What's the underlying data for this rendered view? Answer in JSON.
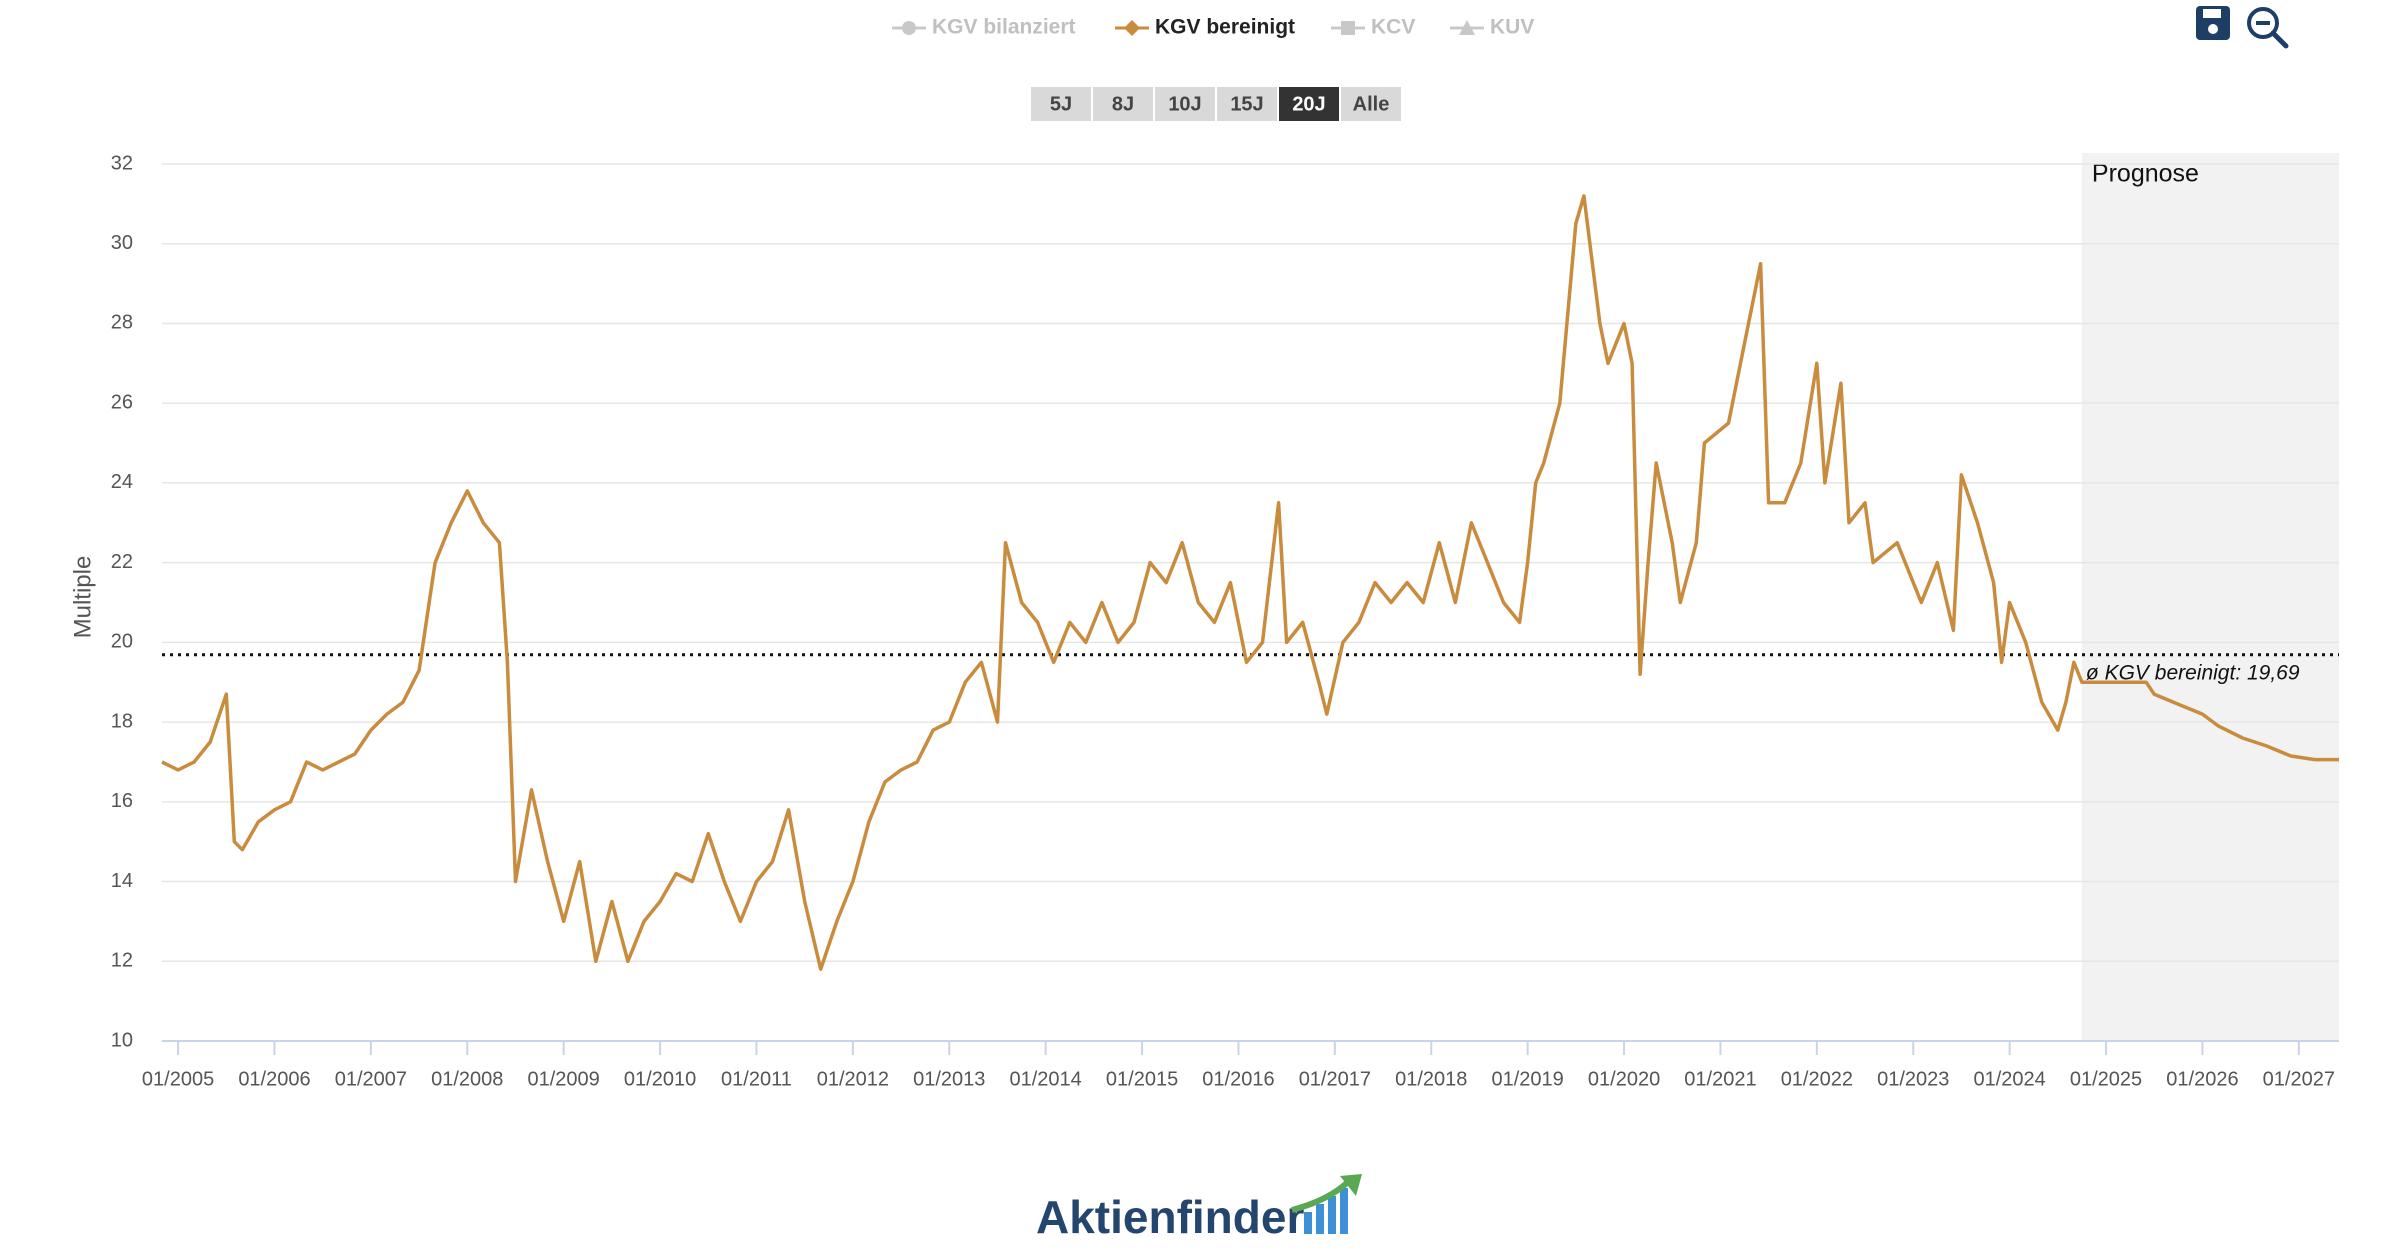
{
  "chart_data": {
    "type": "line",
    "legend": [
      {
        "name": "KGV bilanziert",
        "active": false
      },
      {
        "name": "KGV bereinigt",
        "active": true
      },
      {
        "name": "KCV",
        "active": false
      },
      {
        "name": "KUV",
        "active": false
      }
    ],
    "range_buttons": [
      "5J",
      "8J",
      "10J",
      "15J",
      "20J",
      "Alle"
    ],
    "active_range": 4,
    "y_label": "Multiple",
    "forecast_label": "Prognose",
    "forecast_start": "2024-10",
    "average": {
      "value": 19.69,
      "label": "ø KGV bereinigt: 19,69"
    },
    "logo": "Aktienfinder",
    "grid": true,
    "xlim": [
      "2004-11",
      "2027-06"
    ],
    "ylim": [
      10,
      32
    ],
    "yticks": [
      10,
      12,
      14,
      16,
      18,
      20,
      22,
      24,
      26,
      28,
      30,
      32
    ],
    "xticks": [
      {
        "value": "2005-01",
        "label": "01/2005"
      },
      {
        "value": "2006-01",
        "label": "01/2006"
      },
      {
        "value": "2007-01",
        "label": "01/2007"
      },
      {
        "value": "2008-01",
        "label": "01/2008"
      },
      {
        "value": "2009-01",
        "label": "01/2009"
      },
      {
        "value": "2010-01",
        "label": "01/2010"
      },
      {
        "value": "2011-01",
        "label": "01/2011"
      },
      {
        "value": "2012-01",
        "label": "01/2012"
      },
      {
        "value": "2013-01",
        "label": "01/2013"
      },
      {
        "value": "2014-01",
        "label": "01/2014"
      },
      {
        "value": "2015-01",
        "label": "01/2015"
      },
      {
        "value": "2016-01",
        "label": "01/2016"
      },
      {
        "value": "2017-01",
        "label": "01/2017"
      },
      {
        "value": "2018-01",
        "label": "01/2018"
      },
      {
        "value": "2019-01",
        "label": "01/2019"
      },
      {
        "value": "2020-01",
        "label": "01/2020"
      },
      {
        "value": "2021-01",
        "label": "01/2021"
      },
      {
        "value": "2022-01",
        "label": "01/2022"
      },
      {
        "value": "2023-01",
        "label": "01/2023"
      },
      {
        "value": "2024-01",
        "label": "01/2024"
      },
      {
        "value": "2025-01",
        "label": "01/2025"
      },
      {
        "value": "2026-01",
        "label": "01/2026"
      },
      {
        "value": "2027-01",
        "label": "01/2027"
      }
    ],
    "x": [
      "2004-11",
      "2005-01",
      "2005-03",
      "2005-05",
      "2005-07",
      "2005-08",
      "2005-09",
      "2005-11",
      "2006-01",
      "2006-03",
      "2006-05",
      "2006-07",
      "2006-09",
      "2006-11",
      "2007-01",
      "2007-03",
      "2007-05",
      "2007-07",
      "2007-09",
      "2007-11",
      "2008-01",
      "2008-03",
      "2008-05",
      "2008-06",
      "2008-07",
      "2008-09",
      "2008-11",
      "2009-01",
      "2009-03",
      "2009-05",
      "2009-07",
      "2009-09",
      "2009-11",
      "2010-01",
      "2010-03",
      "2010-05",
      "2010-07",
      "2010-09",
      "2010-11",
      "2011-01",
      "2011-03",
      "2011-05",
      "2011-07",
      "2011-09",
      "2011-11",
      "2012-01",
      "2012-03",
      "2012-05",
      "2012-07",
      "2012-09",
      "2012-11",
      "2013-01",
      "2013-03",
      "2013-05",
      "2013-07",
      "2013-08",
      "2013-10",
      "2013-12",
      "2014-02",
      "2014-04",
      "2014-06",
      "2014-08",
      "2014-10",
      "2014-12",
      "2015-02",
      "2015-04",
      "2015-06",
      "2015-08",
      "2015-10",
      "2015-12",
      "2016-02",
      "2016-04",
      "2016-06",
      "2016-07",
      "2016-09",
      "2016-11",
      "2016-12",
      "2017-02",
      "2017-04",
      "2017-06",
      "2017-08",
      "2017-10",
      "2017-12",
      "2018-02",
      "2018-04",
      "2018-06",
      "2018-08",
      "2018-10",
      "2018-12",
      "2019-01",
      "2019-02",
      "2019-03",
      "2019-05",
      "2019-07",
      "2019-08",
      "2019-10",
      "2019-11",
      "2020-01",
      "2020-02",
      "2020-03",
      "2020-04",
      "2020-05",
      "2020-07",
      "2020-08",
      "2020-10",
      "2020-11",
      "2021-02",
      "2021-04",
      "2021-06",
      "2021-07",
      "2021-09",
      "2021-11",
      "2022-01",
      "2022-02",
      "2022-04",
      "2022-05",
      "2022-07",
      "2022-08",
      "2022-11",
      "2023-02",
      "2023-04",
      "2023-06",
      "2023-07",
      "2023-09",
      "2023-11",
      "2023-12",
      "2024-01",
      "2024-03",
      "2024-05",
      "2024-07",
      "2024-08",
      "2024-09",
      "2024-10",
      "2025-06",
      "2025-07",
      "2025-10",
      "2026-01",
      "2026-03",
      "2026-06",
      "2026-09",
      "2026-12",
      "2027-03",
      "2027-06"
    ],
    "series": [
      {
        "color": "#c98c3e",
        "values": [
          17.0,
          16.8,
          17.0,
          17.5,
          18.7,
          15.0,
          14.8,
          15.5,
          15.8,
          16.0,
          17.0,
          16.8,
          17.0,
          17.2,
          17.8,
          18.2,
          18.5,
          19.3,
          22.0,
          23.0,
          23.8,
          23.0,
          22.5,
          19.5,
          14.0,
          16.3,
          14.5,
          13.0,
          14.5,
          12.0,
          13.5,
          12.0,
          13.0,
          13.5,
          14.2,
          14.0,
          15.2,
          14.0,
          13.0,
          14.0,
          14.5,
          15.8,
          13.5,
          11.8,
          13.0,
          14.0,
          15.5,
          16.5,
          16.8,
          17.0,
          17.8,
          18.0,
          19.0,
          19.5,
          18.0,
          22.5,
          21.0,
          20.5,
          19.5,
          20.5,
          20.0,
          21.0,
          20.0,
          20.5,
          22.0,
          21.5,
          22.5,
          21.0,
          20.5,
          21.5,
          19.5,
          20.0,
          23.5,
          20.0,
          20.5,
          19.0,
          18.2,
          20.0,
          20.5,
          21.5,
          21.0,
          21.5,
          21.0,
          22.5,
          21.0,
          23.0,
          22.0,
          21.0,
          20.5,
          22.0,
          24.0,
          24.5,
          26.0,
          30.5,
          31.2,
          28.0,
          27.0,
          28.0,
          27.0,
          19.2,
          22.0,
          24.5,
          22.5,
          21.0,
          22.5,
          25.0,
          25.5,
          27.5,
          29.5,
          23.5,
          23.5,
          24.5,
          27.0,
          24.0,
          26.5,
          23.0,
          23.5,
          22.0,
          22.5,
          21.0,
          22.0,
          20.3,
          24.2,
          23.0,
          21.5,
          19.5,
          21.0,
          20.0,
          18.5,
          17.8,
          18.5,
          19.5,
          19.0,
          19.0,
          18.7,
          18.45,
          18.2,
          17.9,
          17.6,
          17.4,
          17.15,
          17.06,
          17.06
        ]
      }
    ]
  }
}
